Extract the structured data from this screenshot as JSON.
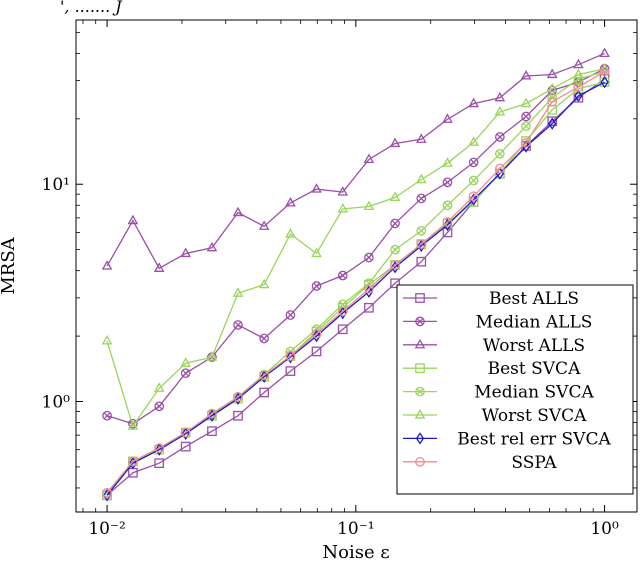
{
  "caption_fragment": "', ....... J",
  "chart_data": {
    "type": "line",
    "xlabel": "Noise ε",
    "ylabel": "MRSA",
    "xscale": "log",
    "yscale": "log",
    "xlim": [
      0.0075,
      1.35
    ],
    "ylim": [
      0.31,
      57
    ],
    "grid": false,
    "legend_position": "bottom-right",
    "x_ticks": [
      {
        "value": 0.01,
        "label": "10⁻²"
      },
      {
        "value": 0.1,
        "label": "10⁻¹"
      },
      {
        "value": 1,
        "label": "10⁰"
      }
    ],
    "y_ticks": [
      {
        "value": 1,
        "label": "10⁰"
      },
      {
        "value": 10,
        "label": "10¹"
      }
    ],
    "x": [
      0.01,
      0.0127,
      0.0162,
      0.0207,
      0.0264,
      0.0336,
      0.0428,
      0.0546,
      0.0695,
      0.0886,
      0.1129,
      0.1438,
      0.1833,
      0.2336,
      0.2976,
      0.3793,
      0.4833,
      0.6158,
      0.7848,
      1.0
    ],
    "series": [
      {
        "name": "Best ALLS",
        "color": "#9b4fa8",
        "marker": "square",
        "values": [
          0.37,
          0.47,
          0.52,
          0.62,
          0.73,
          0.86,
          1.1,
          1.38,
          1.7,
          2.15,
          2.7,
          3.5,
          4.4,
          6.0,
          8.3,
          11.2,
          15.0,
          19.5,
          25.0,
          30.5
        ]
      },
      {
        "name": "Median ALLS",
        "color": "#9b4fa8",
        "marker": "otimes",
        "values": [
          0.86,
          0.79,
          0.95,
          1.35,
          1.6,
          2.25,
          1.95,
          2.5,
          3.4,
          3.8,
          4.6,
          6.6,
          8.6,
          10.2,
          12.6,
          16.5,
          20.5,
          27.0,
          29.5,
          34.0
        ]
      },
      {
        "name": "Worst ALLS",
        "color": "#9b4fa8",
        "marker": "triangle",
        "values": [
          4.2,
          6.8,
          4.1,
          4.8,
          5.1,
          7.4,
          6.4,
          8.2,
          9.5,
          9.2,
          13.0,
          15.4,
          16.1,
          19.9,
          23.5,
          25.0,
          31.5,
          32.0,
          35.5,
          40.0
        ]
      },
      {
        "name": "Best SVCA",
        "color": "#99d65c",
        "marker": "square",
        "values": [
          0.37,
          0.53,
          0.6,
          0.72,
          0.86,
          1.03,
          1.3,
          1.62,
          2.1,
          2.7,
          3.45,
          4.25,
          5.3,
          6.6,
          8.3,
          11.2,
          15.8,
          22.0,
          27.5,
          29.5
        ]
      },
      {
        "name": "Median SVCA",
        "color": "#99d65c",
        "marker": "otimes",
        "values": [
          0.38,
          0.53,
          0.61,
          0.72,
          0.87,
          1.05,
          1.33,
          1.7,
          2.15,
          2.8,
          3.5,
          5.0,
          6.1,
          8.0,
          10.4,
          13.8,
          18.5,
          25.0,
          30.5,
          33.0
        ]
      },
      {
        "name": "Worst SVCA",
        "color": "#99d65c",
        "marker": "triangle",
        "values": [
          1.9,
          0.77,
          1.15,
          1.5,
          1.6,
          3.15,
          3.45,
          5.9,
          4.8,
          7.7,
          7.9,
          8.7,
          10.5,
          12.5,
          15.6,
          21.5,
          23.5,
          27.5,
          32.0,
          34.0
        ]
      },
      {
        "name": "Best rel err SVCA",
        "color": "#1a1ad6",
        "marker": "diamond",
        "values": [
          0.37,
          0.52,
          0.6,
          0.71,
          0.86,
          1.03,
          1.3,
          1.6,
          2.0,
          2.55,
          3.2,
          4.15,
          5.2,
          6.5,
          8.5,
          11.2,
          14.9,
          19.0,
          25.5,
          29.5
        ]
      },
      {
        "name": "SSPA",
        "color": "#f08c8c",
        "marker": "circle",
        "values": [
          0.38,
          0.53,
          0.61,
          0.72,
          0.88,
          1.05,
          1.32,
          1.62,
          2.05,
          2.6,
          3.3,
          4.25,
          5.3,
          6.7,
          8.8,
          11.8,
          15.5,
          24.0,
          28.0,
          33.0
        ]
      }
    ]
  }
}
